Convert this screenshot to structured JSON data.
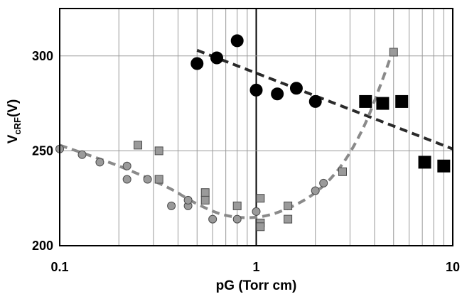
{
  "chart_data": {
    "type": "scatter",
    "xscale": "log",
    "xlim": [
      0.1,
      10
    ],
    "ylim": [
      200,
      325
    ],
    "grid": true,
    "xlabel": "pG (Torr cm)",
    "ylabel": {
      "main": "V",
      "sub": "cRF",
      "unit": "(V)"
    },
    "x_ticks": [
      {
        "value": 0.1,
        "label": "0.1"
      },
      {
        "value": 1,
        "label": "1"
      },
      {
        "value": 10,
        "label": "10"
      }
    ],
    "y_ticks": [
      {
        "value": 200,
        "label": "200"
      },
      {
        "value": 250,
        "label": "250"
      },
      {
        "value": 300,
        "label": "300"
      }
    ],
    "series": [
      {
        "marker": "circle",
        "color": "#000000",
        "size": "large",
        "points": [
          [
            0.5,
            296
          ],
          [
            0.63,
            299
          ],
          [
            0.8,
            308
          ],
          [
            1.0,
            282
          ],
          [
            1.28,
            280
          ],
          [
            1.6,
            283
          ],
          [
            2.0,
            276
          ]
        ]
      },
      {
        "marker": "square",
        "color": "#000000",
        "size": "large",
        "points": [
          [
            3.6,
            276
          ],
          [
            4.4,
            275
          ],
          [
            5.5,
            276
          ],
          [
            7.2,
            244
          ],
          [
            9.0,
            242
          ]
        ]
      },
      {
        "marker": "circle",
        "color": "#9a9a9a",
        "size": "small",
        "points": [
          [
            0.1,
            251
          ],
          [
            0.13,
            248
          ],
          [
            0.16,
            244
          ],
          [
            0.22,
            242
          ],
          [
            0.22,
            235
          ],
          [
            0.28,
            235
          ],
          [
            0.37,
            221
          ],
          [
            0.45,
            221
          ],
          [
            0.45,
            224
          ],
          [
            0.6,
            214
          ],
          [
            0.8,
            214
          ],
          [
            1.0,
            218
          ],
          [
            2.0,
            229
          ],
          [
            2.2,
            233
          ]
        ]
      },
      {
        "marker": "square",
        "color": "#9a9a9a",
        "size": "small",
        "points": [
          [
            0.25,
            253
          ],
          [
            0.32,
            250
          ],
          [
            0.32,
            235
          ],
          [
            0.55,
            228
          ],
          [
            0.55,
            224
          ],
          [
            0.8,
            221
          ],
          [
            1.05,
            225
          ],
          [
            1.05,
            212
          ],
          [
            1.05,
            210
          ],
          [
            1.45,
            221
          ],
          [
            1.45,
            214
          ],
          [
            2.75,
            239
          ],
          [
            5.0,
            302
          ]
        ]
      }
    ],
    "trendlines": [
      {
        "style": "dashed",
        "color": "#2a2a2a",
        "points": [
          [
            0.5,
            303
          ],
          [
            10,
            251
          ]
        ]
      },
      {
        "style": "dashed",
        "color": "#8a8a8a",
        "points": [
          [
            0.1,
            253
          ],
          [
            0.2,
            242
          ],
          [
            0.35,
            231
          ],
          [
            0.5,
            222
          ],
          [
            0.7,
            216
          ],
          [
            1.0,
            215
          ],
          [
            1.4,
            219
          ],
          [
            2.0,
            228
          ],
          [
            2.7,
            242
          ],
          [
            3.5,
            262
          ],
          [
            4.3,
            285
          ],
          [
            5.0,
            304
          ]
        ]
      }
    ]
  }
}
